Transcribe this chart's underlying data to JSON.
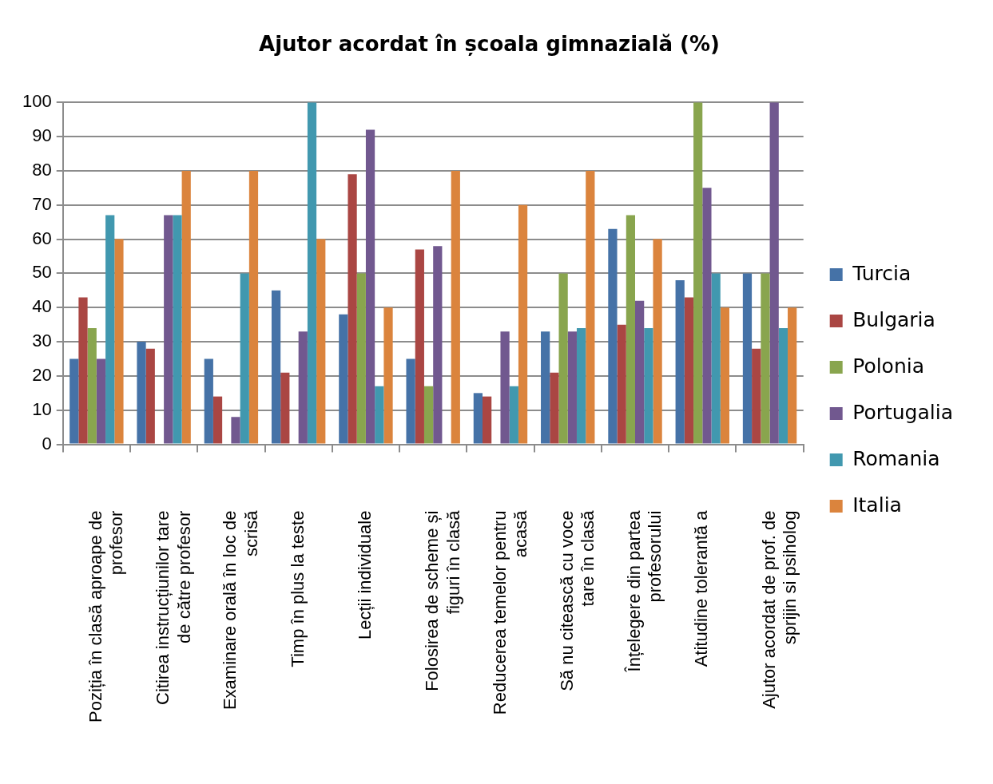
{
  "chart_data": {
    "type": "bar",
    "title": "Ajutor acordat în școala gimnazială (%)",
    "categories": [
      "Poziția în clasă aproape de profesor",
      "Citirea instrucțiunilor tare de către profesor",
      "Examinare orală în loc de scrisă",
      "Timp în plus la teste",
      "Lecții individuale",
      "Folosirea de scheme și figuri în clasă",
      "Reducerea temelor pentru acasă",
      "Să nu citească cu voce tare în clasă",
      "Înțelegere din partea profesorului",
      "Atitudine tolerantă a",
      "Ajutor acordat de prof. de sprijin si psiholog"
    ],
    "series": [
      {
        "name": "Turcia",
        "color": "#4572a7",
        "values": [
          25,
          30,
          25,
          45,
          38,
          25,
          15,
          33,
          63,
          48,
          50
        ]
      },
      {
        "name": "Bulgaria",
        "color": "#aa4643",
        "values": [
          43,
          28,
          14,
          21,
          79,
          57,
          14,
          21,
          35,
          43,
          28
        ]
      },
      {
        "name": "Polonia",
        "color": "#89a54e",
        "values": [
          34,
          null,
          null,
          null,
          50,
          17,
          null,
          50,
          67,
          100,
          50
        ]
      },
      {
        "name": "Portugalia",
        "color": "#71588f",
        "values": [
          25,
          67,
          8,
          33,
          92,
          58,
          33,
          33,
          42,
          75,
          100
        ]
      },
      {
        "name": "Romania",
        "color": "#4198af",
        "values": [
          67,
          67,
          50,
          100,
          17,
          null,
          17,
          34,
          34,
          50,
          34
        ]
      },
      {
        "name": "Italia",
        "color": "#db843d",
        "values": [
          60,
          80,
          80,
          60,
          40,
          80,
          70,
          80,
          60,
          40,
          40
        ]
      }
    ],
    "ylim": [
      0,
      100
    ],
    "yticks": [
      0,
      10,
      20,
      30,
      40,
      50,
      60,
      70,
      80,
      90,
      100
    ],
    "grid": "y",
    "legend": "right"
  }
}
